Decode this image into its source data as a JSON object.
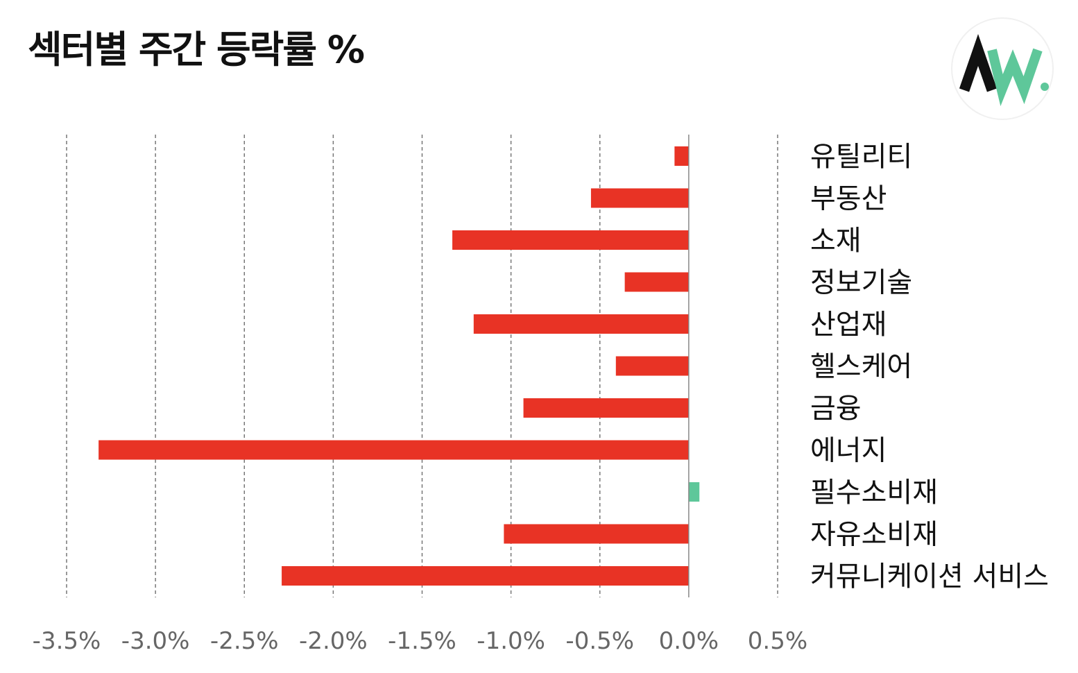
{
  "title": "섹터별 주간 등락률 %",
  "logo": {
    "icon": "aw-logo-icon",
    "dark_color": "#111111",
    "accent_color": "#5ec79a",
    "background_color": "#ffffff"
  },
  "colors": {
    "negative": "#e83325",
    "positive": "#5ec79a",
    "grid": "#777777",
    "zero_line": "#888888"
  },
  "chart_data": {
    "type": "bar",
    "orientation": "horizontal",
    "title": "섹터별 주간 등락률 %",
    "xlabel": "",
    "ylabel": "",
    "categories": [
      "유틸리티",
      "부동산",
      "소재",
      "정보기술",
      "산업재",
      "헬스케어",
      "금융",
      "에너지",
      "필수소비재",
      "자유소비재",
      "커뮤니케이션 서비스"
    ],
    "values": [
      -0.08,
      -0.55,
      -1.33,
      -0.36,
      -1.21,
      -0.41,
      -0.93,
      -3.32,
      0.06,
      -1.04,
      -2.29
    ],
    "xlim": [
      -3.5,
      0.5
    ],
    "x_ticks": [
      -3.5,
      -3.0,
      -2.5,
      -2.0,
      -1.5,
      -1.0,
      -0.5,
      0.0,
      0.5
    ],
    "x_tick_labels": [
      "-3.5%",
      "-3.0%",
      "-2.5%",
      "-2.0%",
      "-1.5%",
      "-1.0%",
      "-0.5%",
      "0.0%",
      "0.5%"
    ],
    "grid": "vertical dashed",
    "category_labels_position": "right",
    "legend": "none"
  }
}
